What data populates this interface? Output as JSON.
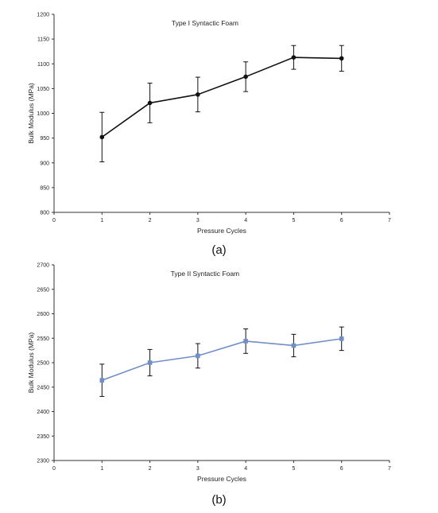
{
  "chart_data": [
    {
      "type": "line",
      "panel_label": "(a)",
      "title": "Type I Syntactic Foam",
      "xlabel": "Pressure Cycles",
      "ylabel": "Bulk Modulus (MPa)",
      "xlim": [
        0,
        7
      ],
      "ylim": [
        800,
        1200
      ],
      "xticks": [
        0,
        1,
        2,
        3,
        4,
        5,
        6,
        7
      ],
      "yticks": [
        800,
        850,
        900,
        950,
        1000,
        1050,
        1100,
        1150,
        1200
      ],
      "grid": false,
      "legend": "none",
      "series": [
        {
          "color": "#111111",
          "marker": "circle",
          "x": [
            1,
            2,
            3,
            4,
            5,
            6
          ],
          "values": [
            952,
            1021,
            1038,
            1074,
            1113,
            1111
          ],
          "error": [
            50,
            40,
            35,
            30,
            24,
            26
          ]
        }
      ]
    },
    {
      "type": "line",
      "panel_label": "(b)",
      "title": "Type II Syntactic Foam",
      "xlabel": "Pressure Cycles",
      "ylabel": "Bulk Modulus (MPa)",
      "xlim": [
        0,
        7
      ],
      "ylim": [
        2300,
        2700
      ],
      "xticks": [
        0,
        1,
        2,
        3,
        4,
        5,
        6,
        7
      ],
      "yticks": [
        2300,
        2350,
        2400,
        2450,
        2500,
        2550,
        2600,
        2650,
        2700
      ],
      "grid": false,
      "legend": "none",
      "series": [
        {
          "color": "#6f8fc9",
          "marker": "square",
          "x": [
            1,
            2,
            3,
            4,
            5,
            6
          ],
          "values": [
            2464,
            2500,
            2514,
            2544,
            2535,
            2549
          ],
          "error": [
            33,
            27,
            25,
            25,
            23,
            24
          ]
        }
      ]
    }
  ]
}
